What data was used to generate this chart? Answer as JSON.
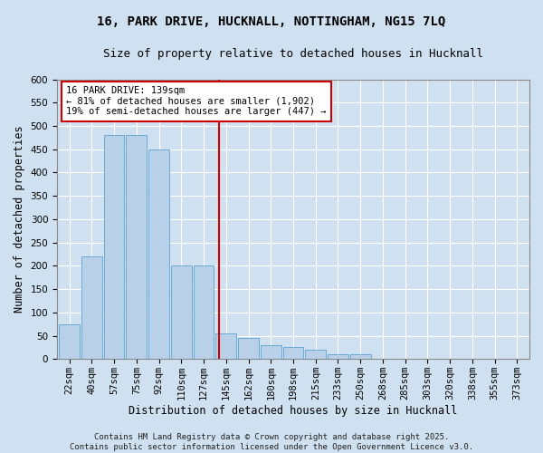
{
  "title_line1": "16, PARK DRIVE, HUCKNALL, NOTTINGHAM, NG15 7LQ",
  "title_line2": "Size of property relative to detached houses in Hucknall",
  "xlabel": "Distribution of detached houses by size in Hucknall",
  "ylabel": "Number of detached properties",
  "categories": [
    "22sqm",
    "40sqm",
    "57sqm",
    "75sqm",
    "92sqm",
    "110sqm",
    "127sqm",
    "145sqm",
    "162sqm",
    "180sqm",
    "198sqm",
    "215sqm",
    "233sqm",
    "250sqm",
    "268sqm",
    "285sqm",
    "303sqm",
    "320sqm",
    "338sqm",
    "355sqm",
    "373sqm"
  ],
  "values": [
    75,
    220,
    480,
    480,
    450,
    200,
    200,
    55,
    45,
    30,
    25,
    20,
    10,
    10,
    0,
    0,
    0,
    0,
    0,
    0,
    0
  ],
  "bar_color": "#b8d0e8",
  "bar_edge_color": "#6aaad4",
  "vline_color": "#cc0000",
  "vline_index": 7,
  "annotation_text": "16 PARK DRIVE: 139sqm\n← 81% of detached houses are smaller (1,902)\n19% of semi-detached houses are larger (447) →",
  "annotation_box_color": "#ffffff",
  "annotation_box_edge": "#cc0000",
  "ylim": [
    0,
    600
  ],
  "yticks": [
    0,
    50,
    100,
    150,
    200,
    250,
    300,
    350,
    400,
    450,
    500,
    550,
    600
  ],
  "background_color": "#cfe0f0",
  "plot_bg_color": "#cfe0f0",
  "grid_color": "#ffffff",
  "footer_text": "Contains HM Land Registry data © Crown copyright and database right 2025.\nContains public sector information licensed under the Open Government Licence v3.0.",
  "title_fontsize": 10,
  "subtitle_fontsize": 9,
  "tick_fontsize": 7.5,
  "label_fontsize": 8.5,
  "annotation_fontsize": 7.5,
  "footer_fontsize": 6.5
}
